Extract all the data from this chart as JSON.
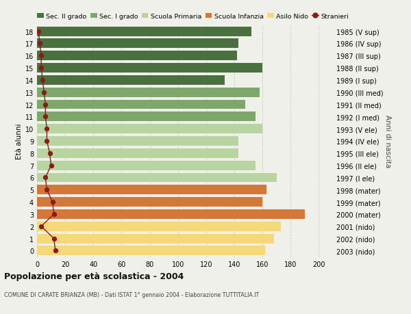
{
  "ages": [
    18,
    17,
    16,
    15,
    14,
    13,
    12,
    11,
    10,
    9,
    8,
    7,
    6,
    5,
    4,
    3,
    2,
    1,
    0
  ],
  "values": [
    152,
    143,
    142,
    160,
    133,
    158,
    148,
    155,
    160,
    143,
    143,
    155,
    170,
    163,
    160,
    190,
    173,
    168,
    162
  ],
  "stranieri": [
    1,
    2,
    3,
    3,
    4,
    5,
    6,
    6,
    7,
    7,
    9,
    10,
    6,
    7,
    11,
    12,
    3,
    12,
    13
  ],
  "right_labels": [
    "1985 (V sup)",
    "1986 (IV sup)",
    "1987 (III sup)",
    "1988 (II sup)",
    "1989 (I sup)",
    "1990 (III med)",
    "1991 (II med)",
    "1992 (I med)",
    "1993 (V ele)",
    "1994 (IV ele)",
    "1995 (III ele)",
    "1996 (II ele)",
    "1997 (I ele)",
    "1998 (mater)",
    "1999 (mater)",
    "2000 (mater)",
    "2001 (nido)",
    "2002 (nido)",
    "2003 (nido)"
  ],
  "bar_colors": [
    "#4a7040",
    "#4a7040",
    "#4a7040",
    "#4a7040",
    "#4a7040",
    "#7da86a",
    "#7da86a",
    "#7da86a",
    "#b8d4a0",
    "#b8d4a0",
    "#b8d4a0",
    "#b8d4a0",
    "#b8d4a0",
    "#d4783a",
    "#d4783a",
    "#d4783a",
    "#f5d87a",
    "#f5d87a",
    "#f5d87a"
  ],
  "colors": {
    "sec2": "#4a7040",
    "sec1": "#7da86a",
    "primaria": "#b8d4a0",
    "infanzia": "#d4783a",
    "nido": "#f5d87a",
    "stranieri": "#8b1a1a"
  },
  "legend_labels": [
    "Sec. II grado",
    "Sec. I grado",
    "Scuola Primaria",
    "Scuola Infanzia",
    "Asilo Nido",
    "Stranieri"
  ],
  "legend_colors": [
    "#4a7040",
    "#7da86a",
    "#b8d4a0",
    "#d4783a",
    "#f5d87a",
    "#8b1a1a"
  ],
  "ylabel": "Età alunni",
  "right_axis_label": "Anni di nascita",
  "title": "Popolazione per età scolastica - 2004",
  "subtitle": "COMUNE DI CARATE BRIANZA (MB) - Dati ISTAT 1° gennaio 2004 - Elaborazione TUTTITALIA.IT",
  "xlim": [
    0,
    210
  ],
  "xticks": [
    0,
    20,
    40,
    60,
    80,
    100,
    120,
    140,
    160,
    180,
    200
  ],
  "bg_color": "#f0f0eb",
  "grid_color": "#cccccc",
  "bar_height": 0.78
}
